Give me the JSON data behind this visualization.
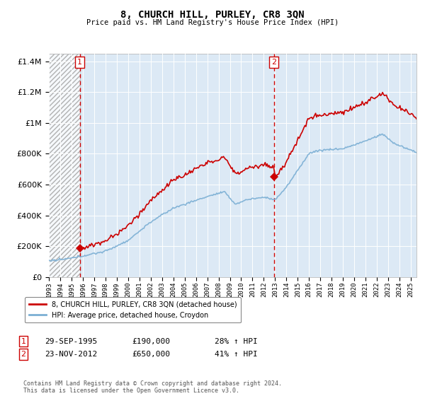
{
  "title": "8, CHURCH HILL, PURLEY, CR8 3QN",
  "subtitle": "Price paid vs. HM Land Registry's House Price Index (HPI)",
  "background_plot": "#dce9f5",
  "red_line_color": "#cc0000",
  "blue_line_color": "#7bafd4",
  "marker_color": "#cc0000",
  "purchase1_date": "29-SEP-1995",
  "purchase1_price": 190000,
  "purchase1_label": "28% ↑ HPI",
  "purchase2_date": "23-NOV-2012",
  "purchase2_price": 650000,
  "purchase2_label": "41% ↑ HPI",
  "legend_label1": "8, CHURCH HILL, PURLEY, CR8 3QN (detached house)",
  "legend_label2": "HPI: Average price, detached house, Croydon",
  "footer": "Contains HM Land Registry data © Crown copyright and database right 2024.\nThis data is licensed under the Open Government Licence v3.0.",
  "ylim": [
    0,
    1450000
  ],
  "xlim_start": 1993.0,
  "xlim_end": 2025.5,
  "purchase1_x": 1995.73,
  "purchase2_x": 2012.9
}
